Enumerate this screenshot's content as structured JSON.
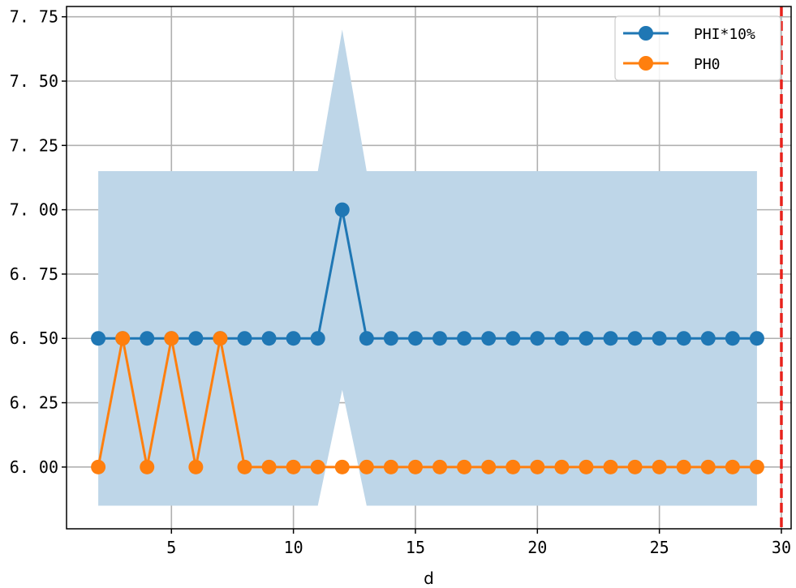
{
  "chart_data": {
    "type": "line",
    "title": "",
    "xlabel": "d",
    "ylabel": "",
    "xlim": [
      0.7,
      30.4
    ],
    "ylim": [
      5.76,
      7.79
    ],
    "xticks": [
      5,
      10,
      15,
      20,
      25,
      30
    ],
    "xtick_labels": [
      "5",
      "10",
      "15",
      "20",
      "25",
      "30"
    ],
    "yticks": [
      6.0,
      6.25,
      6.5,
      6.75,
      7.0,
      7.25,
      7.5,
      7.75
    ],
    "ytick_labels": [
      "6. 00",
      "6. 25",
      "6. 50",
      "6. 75",
      "7. 00",
      "7. 25",
      "7. 50",
      "7. 75"
    ],
    "grid": true,
    "legend_position": "top-right",
    "x": [
      2,
      3,
      4,
      5,
      6,
      7,
      8,
      9,
      10,
      11,
      12,
      13,
      14,
      15,
      16,
      17,
      18,
      19,
      20,
      21,
      22,
      23,
      24,
      25,
      26,
      27,
      28,
      29
    ],
    "series": [
      {
        "name": "PHI*10%",
        "color": "#1f77b4",
        "values": [
          6.5,
          6.5,
          6.5,
          6.5,
          6.5,
          6.5,
          6.5,
          6.5,
          6.5,
          6.5,
          7.0,
          6.5,
          6.5,
          6.5,
          6.5,
          6.5,
          6.5,
          6.5,
          6.5,
          6.5,
          6.5,
          6.5,
          6.5,
          6.5,
          6.5,
          6.5,
          6.5,
          6.5
        ]
      },
      {
        "name": "PH0",
        "color": "#ff7f0e",
        "values": [
          6.0,
          6.5,
          6.0,
          6.5,
          6.0,
          6.5,
          6.0,
          6.0,
          6.0,
          6.0,
          6.0,
          6.0,
          6.0,
          6.0,
          6.0,
          6.0,
          6.0,
          6.0,
          6.0,
          6.0,
          6.0,
          6.0,
          6.0,
          6.0,
          6.0,
          6.0,
          6.0,
          6.0
        ]
      }
    ],
    "band": {
      "color": "#bed6e8",
      "x": [
        2,
        11,
        12,
        13,
        29
      ],
      "upper": [
        7.15,
        7.15,
        7.7,
        7.15,
        7.15
      ],
      "lower": [
        5.85,
        5.85,
        6.3,
        5.85,
        5.85
      ]
    },
    "vline": {
      "x": 30,
      "color": "#e8221c",
      "style": "dashed"
    }
  }
}
